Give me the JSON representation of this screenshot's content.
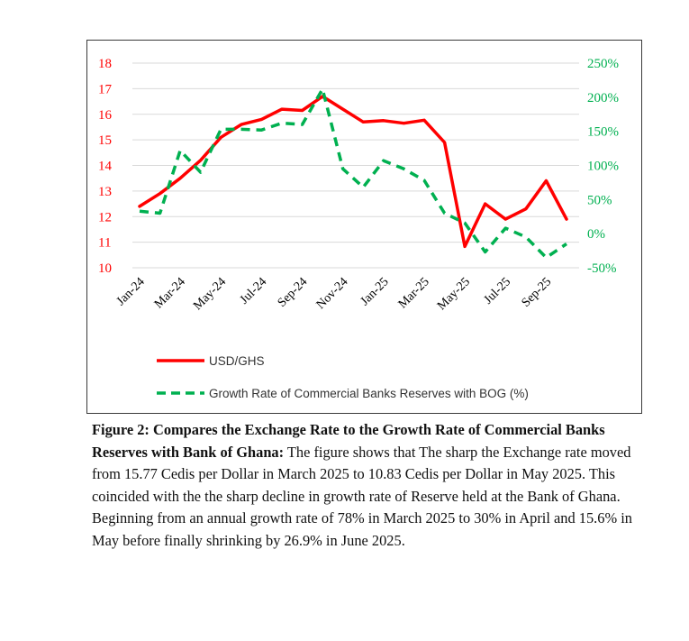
{
  "chart_data": {
    "type": "line",
    "categories": [
      "Jan-24",
      "Feb-24",
      "Mar-24",
      "Apr-24",
      "May-24",
      "Jun-24",
      "Jul-24",
      "Aug-24",
      "Sep-24",
      "Oct-24",
      "Nov-24",
      "Dec-24",
      "Jan-25",
      "Feb-25",
      "Mar-25",
      "Apr-25",
      "May-25",
      "Jun-25",
      "Jul-25",
      "Aug-25",
      "Sep-25",
      "Oct-25"
    ],
    "x_tick_labels": [
      "Jan-24",
      "Mar-24",
      "May-24",
      "Jul-24",
      "Sep-24",
      "Nov-24",
      "Jan-25",
      "Mar-25",
      "May-25",
      "Jul-25",
      "Sep-25"
    ],
    "y_left": {
      "min": 10,
      "max": 18,
      "ticks": [
        "10",
        "11",
        "12",
        "13",
        "14",
        "15",
        "16",
        "17",
        "18"
      ],
      "color": "#ff0000"
    },
    "y_right": {
      "min": -0.5,
      "max": 2.5,
      "ticks": [
        "-50%",
        "0%",
        "50%",
        "100%",
        "150%",
        "200%",
        "250%"
      ],
      "color": "#00b050"
    },
    "grid": "horizontal",
    "legend_position": "bottom",
    "series": [
      {
        "name": "USD/GHS",
        "axis": "left",
        "color": "#ff0000",
        "style": "solid",
        "values": [
          12.4,
          12.9,
          13.5,
          14.2,
          15.1,
          15.6,
          15.8,
          16.2,
          16.15,
          16.7,
          16.2,
          15.7,
          15.75,
          15.65,
          15.77,
          14.9,
          10.83,
          12.5,
          11.9,
          12.3,
          13.4,
          11.9
        ]
      },
      {
        "name": "Growth Rate of Commercial Banks Reserves with BOG (%)",
        "axis": "right",
        "color": "#00b050",
        "style": "dashed",
        "values": [
          0.33,
          0.3,
          1.22,
          0.9,
          1.53,
          1.53,
          1.52,
          1.62,
          1.6,
          2.12,
          0.95,
          0.68,
          1.07,
          0.95,
          0.78,
          0.3,
          0.156,
          -0.269,
          0.08,
          -0.05,
          -0.35,
          -0.15
        ]
      }
    ]
  },
  "caption": {
    "title": "Figure 2: Compares the Exchange Rate to the Growth Rate of Commercial Banks Reserves with Bank of Ghana:",
    "body": " The figure shows that The sharp the Exchange rate moved from 15.77 Cedis per Dollar in March 2025 to 10.83 Cedis per Dollar in May 2025. This coincided with the the sharp  decline in growth rate of Reserve held at the Bank of Ghana. Beginning from an annual growth rate of 78% in March 2025 to 30% in April and 15.6% in May before finally shrinking by 26.9% in June 2025."
  }
}
